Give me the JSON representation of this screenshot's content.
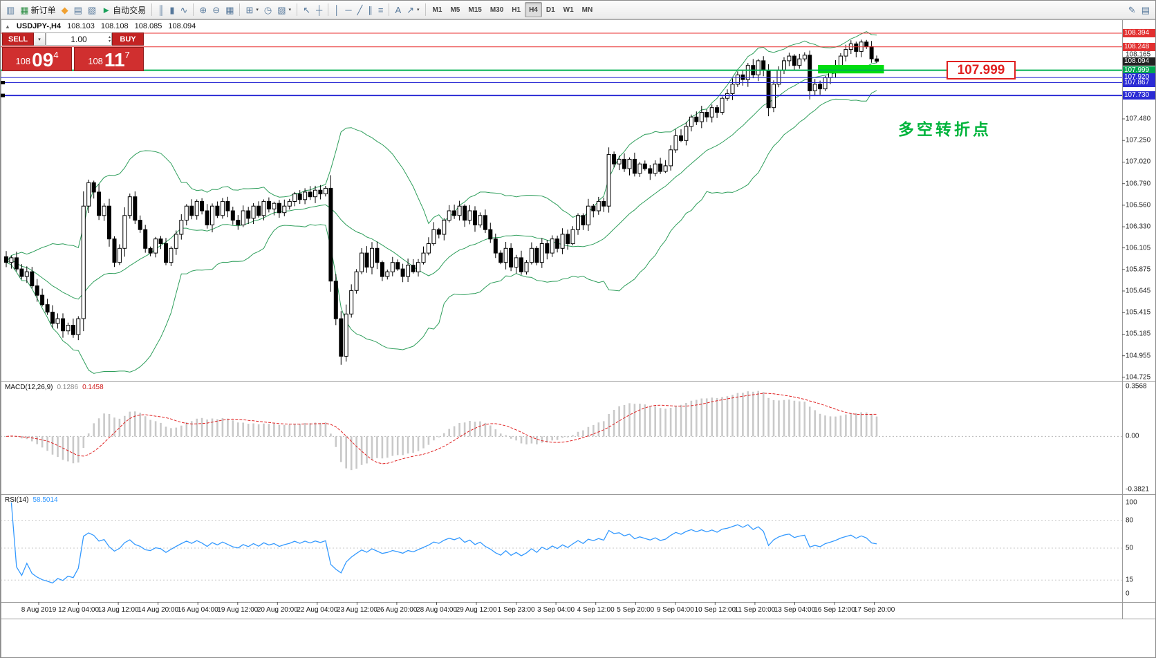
{
  "header": {
    "marker": "▲",
    "symbol": "USDJPY-,H4",
    "open": "108.103",
    "high": "108.108",
    "low": "108.085",
    "close": "108.094"
  },
  "trade_panel": {
    "sell_label": "SELL",
    "buy_label": "BUY",
    "volume": "1.00",
    "dropdown_caret": "▾",
    "spin_up": "▴",
    "spin_down": "▾",
    "sell_price": {
      "prefix": "108",
      "pips": "09",
      "sup": "4"
    },
    "buy_price": {
      "prefix": "108",
      "pips": "11",
      "sup": "7"
    }
  },
  "indicators": {
    "macd": {
      "name": "MACD(12,26,9)",
      "value_main": "0.1286",
      "value_signal": "0.1458"
    },
    "rsi": {
      "name": "RSI(14)",
      "value": "58.5014"
    }
  },
  "annotations": {
    "callout": "107.999",
    "note": "多空转折点"
  },
  "toolbar": {
    "caret_glyph": "▾",
    "groups": [
      {
        "name": "file-group",
        "items": [
          {
            "name": "chart-window-icon",
            "glyph": "▥"
          },
          {
            "name": "new-order-button",
            "glyph": "▦",
            "color": "#2f8f46",
            "label": "新订单"
          },
          {
            "name": "mql5-community-icon",
            "glyph": "◆",
            "color": "#f0a030"
          },
          {
            "name": "data-window-icon",
            "glyph": "▤"
          },
          {
            "name": "navigator-icon",
            "glyph": "▧"
          },
          {
            "name": "autotrading-button",
            "glyph": "►",
            "color": "#1aa05a",
            "label": "自动交易"
          }
        ]
      },
      {
        "name": "chart-type-group",
        "items": [
          {
            "name": "bar-chart-icon",
            "glyph": "║"
          },
          {
            "name": "candlestick-chart-icon",
            "glyph": "▮"
          },
          {
            "name": "line-chart-icon",
            "glyph": "∿"
          }
        ]
      },
      {
        "name": "zoom-group",
        "items": [
          {
            "name": "zoom-in-icon",
            "glyph": "⊕"
          },
          {
            "name": "zoom-out-icon",
            "glyph": "⊖"
          },
          {
            "name": "auto-scroll-icon",
            "glyph": "▦"
          }
        ]
      },
      {
        "name": "window-group",
        "items": [
          {
            "name": "new-chart-icon",
            "glyph": "⊞",
            "caret": true
          },
          {
            "name": "profiles-icon",
            "glyph": "◷"
          },
          {
            "name": "templates-icon",
            "glyph": "▨",
            "caret": true
          }
        ]
      },
      {
        "name": "cursor-group",
        "items": [
          {
            "name": "cursor-icon",
            "glyph": "↖"
          },
          {
            "name": "crosshair-icon",
            "glyph": "┼"
          }
        ]
      },
      {
        "name": "draw-group",
        "items": [
          {
            "name": "vertical-line-icon",
            "glyph": "│"
          },
          {
            "name": "horizontal-line-icon",
            "glyph": "─"
          },
          {
            "name": "trendline-icon",
            "glyph": "╱"
          },
          {
            "name": "channel-icon",
            "glyph": "∥"
          },
          {
            "name": "fibonacci-icon",
            "glyph": "≡"
          }
        ]
      },
      {
        "name": "object-group",
        "items": [
          {
            "name": "text-tool-icon",
            "glyph": "A"
          },
          {
            "name": "arrows-tool-icon",
            "glyph": "↗",
            "caret": true
          }
        ]
      },
      {
        "name": "timeframe-group",
        "items": [
          {
            "name": "tf-m1-button",
            "label": "M1",
            "tf": true
          },
          {
            "name": "tf-m5-button",
            "label": "M5",
            "tf": true
          },
          {
            "name": "tf-m15-button",
            "label": "M15",
            "tf": true
          },
          {
            "name": "tf-m30-button",
            "label": "M30",
            "tf": true
          },
          {
            "name": "tf-h1-button",
            "label": "H1",
            "tf": true
          },
          {
            "name": "tf-h4-button",
            "label": "H4",
            "tf": true,
            "active": true
          },
          {
            "name": "tf-d1-button",
            "label": "D1",
            "tf": true
          },
          {
            "name": "tf-w1-button",
            "label": "W1",
            "tf": true
          },
          {
            "name": "tf-mn-button",
            "label": "MN",
            "tf": true
          }
        ]
      },
      {
        "name": "right-group",
        "align_right": true,
        "items": [
          {
            "name": "compose-icon",
            "glyph": "✎"
          },
          {
            "name": "properties-icon",
            "glyph": "▤"
          }
        ]
      }
    ]
  },
  "chart_data": [
    {
      "type": "candlestick",
      "symbol": "USDJPY-",
      "timeframe": "H4",
      "ylim": [
        104.725,
        108.52
      ],
      "y_ticks": [
        "107.480",
        "107.250",
        "107.020",
        "106.790",
        "106.560",
        "106.330",
        "106.105",
        "105.875",
        "105.645",
        "105.415",
        "105.185",
        "104.955",
        "104.725"
      ],
      "axis_labels": [
        {
          "text": "108.394",
          "bg": "#e23030"
        },
        {
          "text": "108.248",
          "bg": "#e23030"
        },
        {
          "text": "108.165"
        },
        {
          "text": "108.094",
          "bg": "#222222"
        },
        {
          "text": "107.999",
          "bg": "#00a551"
        },
        {
          "text": "107.920",
          "bg": "#2b2bd4"
        },
        {
          "text": "107.867",
          "bg": "#2b2bd4"
        },
        {
          "text": "107.730",
          "bg": "#2b2bd4"
        }
      ],
      "levels": [
        {
          "price": 108.394,
          "color": "#e93030",
          "width": 1
        },
        {
          "price": 108.248,
          "color": "#e93030",
          "width": 1
        },
        {
          "price": 107.999,
          "color": "#00b050",
          "width": 2
        },
        {
          "price": 107.92,
          "color": "#2b2bd4",
          "width": 1
        },
        {
          "price": 107.867,
          "color": "#2b2bd4",
          "width": 1,
          "handle": true
        },
        {
          "price": 107.73,
          "color": "#2b2bd4",
          "width": 2,
          "handle": true
        }
      ],
      "zone": {
        "from_candle": 158,
        "to_candle": 170,
        "price_top": 108.055,
        "price_bottom": 107.965,
        "color": "#00dd12"
      },
      "overlays": {
        "bollinger": {
          "period": 20,
          "deviation": 2,
          "color": "#2e9e5b"
        }
      },
      "x_labels": [
        "8 Aug 2019",
        "12 Aug 04:00",
        "13 Aug 12:00",
        "14 Aug 20:00",
        "16 Aug 04:00",
        "19 Aug 12:00",
        "20 Aug 20:00",
        "22 Aug 04:00",
        "23 Aug 12:00",
        "26 Aug 20:00",
        "28 Aug 04:00",
        "29 Aug 12:00",
        "1 Sep 23:00",
        "3 Sep 04:00",
        "4 Sep 12:00",
        "5 Sep 20:00",
        "9 Sep 04:00",
        "10 Sep 12:00",
        "11 Sep 20:00",
        "13 Sep 04:00",
        "16 Sep 12:00",
        "17 Sep 20:00"
      ],
      "closes": [
        105.95,
        106.0,
        105.88,
        105.8,
        105.85,
        105.7,
        105.6,
        105.5,
        105.42,
        105.3,
        105.35,
        105.22,
        105.28,
        105.18,
        105.35,
        106.55,
        106.8,
        106.7,
        106.45,
        106.55,
        106.2,
        105.95,
        106.1,
        106.45,
        106.65,
        106.4,
        106.3,
        106.1,
        106.05,
        106.2,
        106.15,
        105.95,
        106.1,
        106.25,
        106.4,
        106.55,
        106.45,
        106.6,
        106.5,
        106.35,
        106.55,
        106.45,
        106.6,
        106.5,
        106.4,
        106.35,
        106.5,
        106.42,
        106.55,
        106.45,
        106.6,
        106.52,
        106.58,
        106.48,
        106.55,
        106.6,
        106.68,
        106.62,
        106.7,
        106.65,
        106.72,
        106.68,
        106.74,
        105.75,
        105.35,
        104.95,
        105.4,
        105.65,
        105.85,
        106.05,
        105.9,
        106.1,
        105.95,
        105.8,
        105.85,
        105.95,
        105.88,
        105.8,
        105.92,
        105.85,
        105.95,
        106.05,
        106.15,
        106.3,
        106.25,
        106.4,
        106.5,
        106.45,
        106.55,
        106.4,
        106.5,
        106.35,
        106.45,
        106.3,
        106.2,
        106.05,
        105.95,
        106.1,
        105.9,
        106.0,
        105.85,
        105.95,
        106.1,
        105.95,
        106.15,
        106.05,
        106.2,
        106.1,
        106.25,
        106.15,
        106.3,
        106.45,
        106.35,
        106.55,
        106.5,
        106.6,
        106.55,
        107.1,
        107.0,
        107.05,
        106.95,
        107.05,
        106.9,
        107.0,
        106.95,
        106.9,
        107.0,
        106.92,
        106.98,
        107.15,
        107.3,
        107.25,
        107.4,
        107.5,
        107.45,
        107.55,
        107.5,
        107.6,
        107.55,
        107.7,
        107.75,
        107.85,
        107.95,
        107.9,
        108.05,
        107.95,
        108.1,
        108.0,
        107.6,
        107.85,
        108.0,
        108.1,
        108.15,
        108.05,
        108.12,
        108.16,
        107.78,
        107.85,
        107.8,
        107.92,
        107.98,
        108.05,
        108.15,
        108.22,
        108.28,
        108.2,
        108.3,
        108.25,
        108.12,
        108.094
      ]
    },
    {
      "type": "macd",
      "name": "MACD(12,26,9)",
      "params": [
        12,
        26,
        9
      ],
      "values": {
        "main": 0.1286,
        "signal": 0.1458
      },
      "ylim": [
        -0.3821,
        0.3568
      ],
      "y_ticks": [
        "0.3568",
        "0.00",
        "-0.3821"
      ],
      "histogram_color": "#c9c9c9",
      "signal_color": "#e02020"
    },
    {
      "type": "rsi",
      "name": "RSI(14)",
      "period": 14,
      "value": 58.5014,
      "levels": [
        80,
        50,
        15
      ],
      "y_ticks": [
        "100",
        "80",
        "50",
        "15",
        "0"
      ],
      "line_color": "#3399ff",
      "ylim": [
        0,
        100
      ]
    }
  ]
}
